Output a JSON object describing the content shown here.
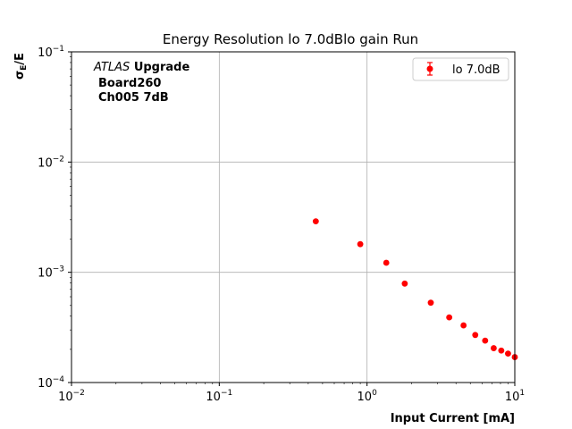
{
  "chart_data": {
    "type": "scatter",
    "title": "Energy Resolution lo 7.0dBlo gain Run",
    "xlabel": "Input Current [mA]",
    "ylabel": "σ_E/E",
    "xscale": "log",
    "yscale": "log",
    "xlim": [
      0.01,
      10
    ],
    "ylim": [
      0.0001,
      0.1
    ],
    "grid": true,
    "legend_placement": "top-right",
    "annotation": {
      "experiment": "ATLAS",
      "tag": "Upgrade",
      "board": "Board260",
      "channel": "Ch005 7dB"
    },
    "x_ticks": [
      {
        "value": 0.01,
        "base": "10",
        "exp": "−2"
      },
      {
        "value": 0.1,
        "base": "10",
        "exp": "−1"
      },
      {
        "value": 1,
        "base": "10",
        "exp": "0"
      },
      {
        "value": 10,
        "base": "10",
        "exp": "1"
      }
    ],
    "y_ticks": [
      {
        "value": 0.0001,
        "base": "10",
        "exp": "−4"
      },
      {
        "value": 0.001,
        "base": "10",
        "exp": "−3"
      },
      {
        "value": 0.01,
        "base": "10",
        "exp": "−2"
      },
      {
        "value": 0.1,
        "base": "10",
        "exp": "−1"
      }
    ],
    "series": [
      {
        "name": "lo 7.0dB",
        "color": "#ff0000",
        "x": [
          0.45,
          0.9,
          1.35,
          1.8,
          2.7,
          3.6,
          4.5,
          5.4,
          6.3,
          7.2,
          8.1,
          9.0,
          10.0
        ],
        "y": [
          0.0029,
          0.0018,
          0.00122,
          0.00079,
          0.00053,
          0.00039,
          0.00033,
          0.00027,
          0.00024,
          0.000205,
          0.000195,
          0.000183,
          0.00017
        ]
      }
    ]
  }
}
